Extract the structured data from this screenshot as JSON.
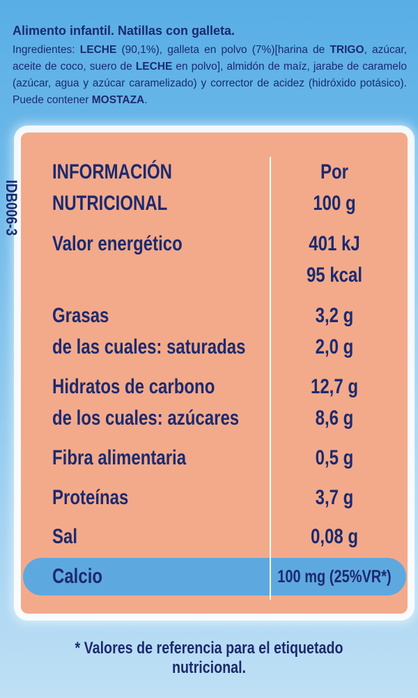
{
  "title": "Alimento infantil. Natillas con galleta.",
  "ingredients": [
    {
      "text": "Ingredientes: ",
      "bold": false
    },
    {
      "text": "LECHE",
      "bold": true
    },
    {
      "text": " (90,1%), galleta en polvo (7%)[harina de ",
      "bold": false
    },
    {
      "text": "TRIGO",
      "bold": true
    },
    {
      "text": ", azúcar, aceite de coco, suero de ",
      "bold": false
    },
    {
      "text": "LECHE",
      "bold": true
    },
    {
      "text": " en polvo], almidón de maíz, jarabe de caramelo (azúcar, agua y azúcar caramelizado) y corrector de acidez (hidróxido potásico). Puede contener ",
      "bold": false
    },
    {
      "text": "MOSTAZA",
      "bold": true
    },
    {
      "text": ".",
      "bold": false
    }
  ],
  "code": "IDB006-3",
  "table": {
    "header": {
      "label": [
        "INFORMACIÓN",
        "NUTRICIONAL"
      ],
      "value": [
        "Por",
        "100 g"
      ]
    },
    "rows": [
      {
        "label": [
          "Valor energético"
        ],
        "value": [
          "401 kJ",
          "95 kcal"
        ]
      },
      {
        "label": [
          "Grasas",
          "de las cuales: saturadas"
        ],
        "value": [
          "3,2 g",
          "2,0 g"
        ]
      },
      {
        "label": [
          "Hidratos de carbono",
          "de los cuales: azúcares"
        ],
        "value": [
          "12,7 g",
          "8,6 g"
        ]
      },
      {
        "label": [
          "Fibra alimentaria"
        ],
        "value": [
          "0,5 g"
        ]
      },
      {
        "label": [
          "Proteínas"
        ],
        "value": [
          "3,7 g"
        ]
      },
      {
        "label": [
          "Sal"
        ],
        "value": [
          "0,08 g"
        ]
      },
      {
        "label": [
          "Calcio"
        ],
        "value": [
          "100 mg (25%VR*)"
        ],
        "highlight": true
      }
    ]
  },
  "footnote": "* Valores de referencia para el etiquetado nutricional."
}
